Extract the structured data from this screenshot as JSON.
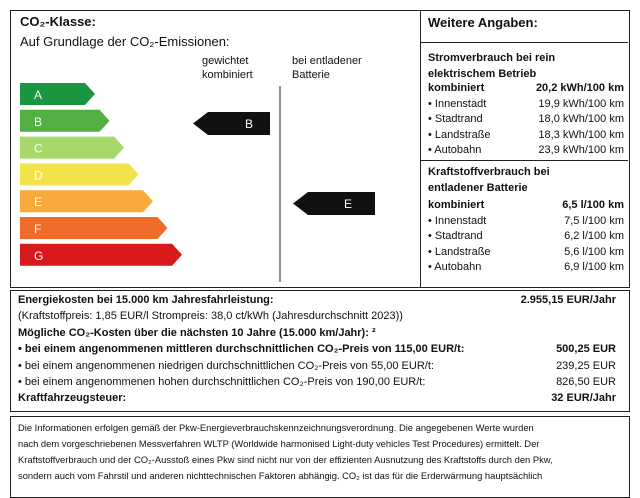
{
  "co2_panel": {
    "title": "CO₂-Klasse:",
    "subtitle": "Auf Grundlage der CO₂-Emissionen:",
    "col_weighted": [
      "gewichtet",
      "kombiniert"
    ],
    "col_discharged": [
      "bei entladener",
      "Batterie"
    ],
    "classes": [
      "A",
      "B",
      "C",
      "D",
      "E",
      "F",
      "G"
    ],
    "marker_weighted": "B",
    "marker_discharged": "E"
  },
  "details": {
    "title": "Weitere Angaben:",
    "electric_heading": [
      "Stromverbrauch bei rein",
      "elektrischem Betrieb"
    ],
    "electric_rows": [
      [
        "kombiniert",
        "20,2 kWh/100 km"
      ],
      [
        "• Innenstadt",
        "19,9 kWh/100 km"
      ],
      [
        "• Stadtrand",
        "18,0 kWh/100 km"
      ],
      [
        "• Landstraße",
        "18,3 kWh/100 km"
      ],
      [
        "• Autobahn",
        "23,9 kWh/100 km"
      ]
    ],
    "fuel_heading": [
      "Kraftstoffverbrauch bei",
      "entladener Batterie"
    ],
    "fuel_rows": [
      [
        "kombiniert",
        "6,5 l/100 km"
      ],
      [
        "• Innenstadt",
        "7,5 l/100 km"
      ],
      [
        "• Stadtrand",
        "6,2 l/100 km"
      ],
      [
        "• Landstraße",
        "5,6 l/100 km"
      ],
      [
        "• Autobahn",
        "6,9 l/100 km"
      ]
    ]
  },
  "costs": {
    "rows": [
      [
        "Energiekosten bei 15.000 km Jahresfahrleistung:",
        "2.955,15 EUR/Jahr"
      ],
      [
        "(Kraftstoffpreis:  1,85 EUR/l  Strompreis:  38,0 ct/kWh (Jahresdurchschnitt 2023))"
      ],
      [
        "Mögliche CO₂-Kosten über die nächsten 10 Jahre (15.000 km/Jahr): ²"
      ],
      [
        "• bei einem angenommenen mittleren durchschnittlichen CO₂-Preis von 115,00 EUR/t:",
        "500,25 EUR"
      ],
      [
        "• bei einem angenommenen niedrigen durchschnittlichen CO₂-Preis von 55,00 EUR/t:",
        "239,25 EUR"
      ],
      [
        "• bei einem angenommenen hohen durchschnittlichen CO₂-Preis von 190,00 EUR/t:",
        "826,50 EUR"
      ],
      [
        "Kraftfahrzeugsteuer:",
        "32 EUR/Jahr"
      ]
    ]
  },
  "footnote": [
    "Die Informationen erfolgen gemäß der Pkw-Energieverbrauchskennzeichnungsverordnung. Die angegebenen Werte wurden",
    "nach dem vorgeschriebenen Messverfahren WLTP (Worldwide harmonised Light-duty vehicles Test Procedures) ermittelt. Der",
    "Kraftstoffverbrauch und der CO₂-Ausstoß eines Pkw sind nicht nur von der effizienten Ausnutzung des Kraftstoffs durch den Pkw,",
    "sondern auch vom Fahrstil und anderen nichttechnischen Faktoren abhängig. CO₂ ist das für die Erderwärmung hauptsächlich"
  ]
}
